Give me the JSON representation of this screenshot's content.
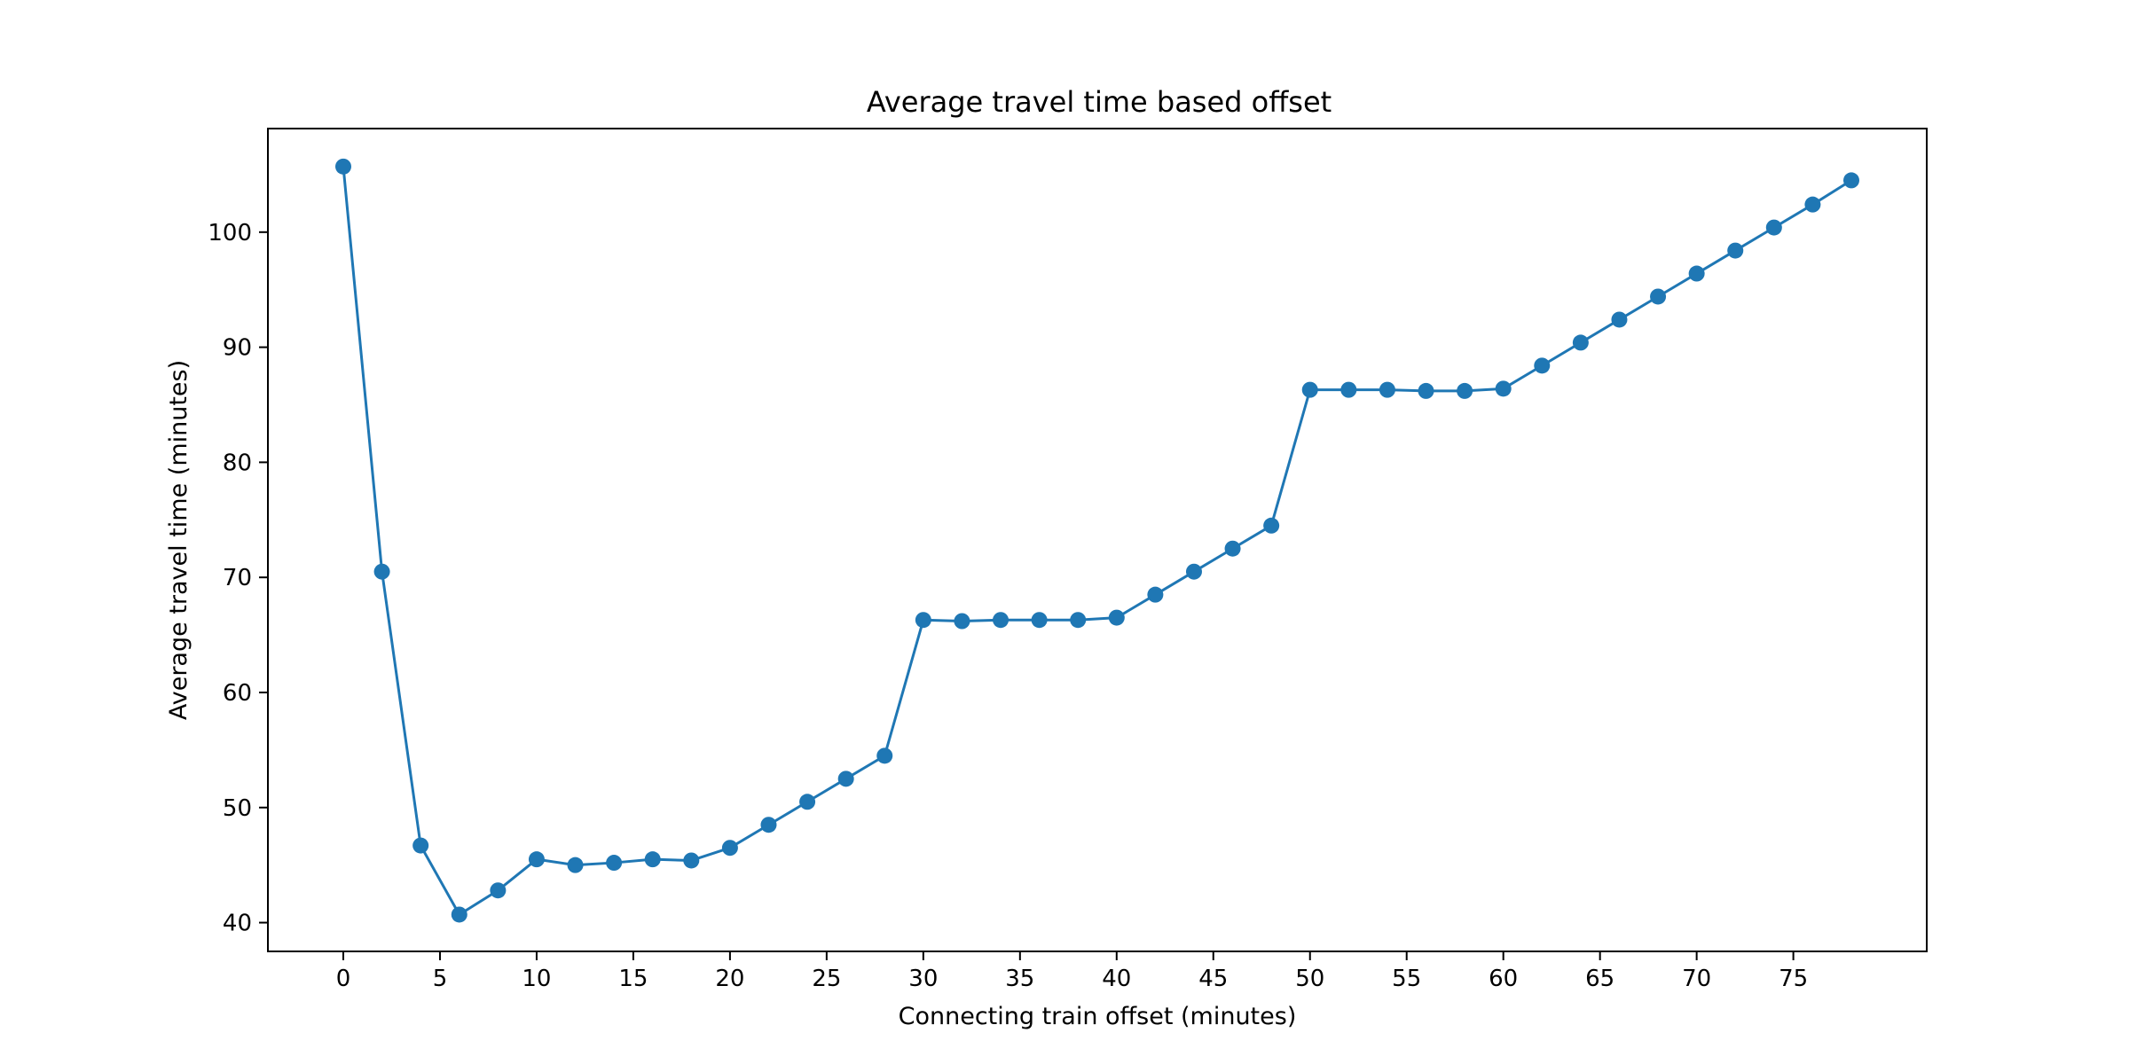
{
  "chart_data": {
    "type": "line",
    "title": "Average travel time based offset",
    "xlabel": "Connecting train offset (minutes)",
    "ylabel": "Average travel time (minutes)",
    "xlim": [
      -3.9,
      81.9
    ],
    "ylim": [
      37.5,
      109
    ],
    "xticks": [
      0,
      5,
      10,
      15,
      20,
      25,
      30,
      35,
      40,
      45,
      50,
      55,
      60,
      65,
      70,
      75
    ],
    "yticks": [
      40,
      50,
      60,
      70,
      80,
      90,
      100
    ],
    "grid": false,
    "legend": "none",
    "color": "#1f77b4",
    "marker": "circle",
    "series": [
      {
        "x": [
          0,
          2,
          4,
          6,
          8,
          10,
          12,
          14,
          16,
          18,
          20,
          22,
          24,
          26,
          28,
          30,
          32,
          34,
          36,
          38,
          40,
          42,
          44,
          46,
          48,
          50,
          52,
          54,
          56,
          58,
          60,
          62,
          64,
          66,
          68,
          70,
          72,
          74,
          76,
          78
        ],
        "y": [
          105.7,
          70.5,
          46.7,
          40.7,
          42.8,
          45.5,
          45.0,
          45.2,
          45.5,
          45.4,
          46.5,
          48.5,
          50.5,
          52.5,
          54.5,
          66.3,
          66.2,
          66.3,
          66.3,
          66.3,
          66.5,
          68.5,
          70.5,
          72.5,
          74.5,
          86.3,
          86.3,
          86.3,
          86.2,
          86.2,
          86.4,
          88.4,
          90.4,
          92.4,
          94.4,
          96.4,
          98.4,
          100.4,
          102.4,
          104.5
        ]
      }
    ]
  }
}
